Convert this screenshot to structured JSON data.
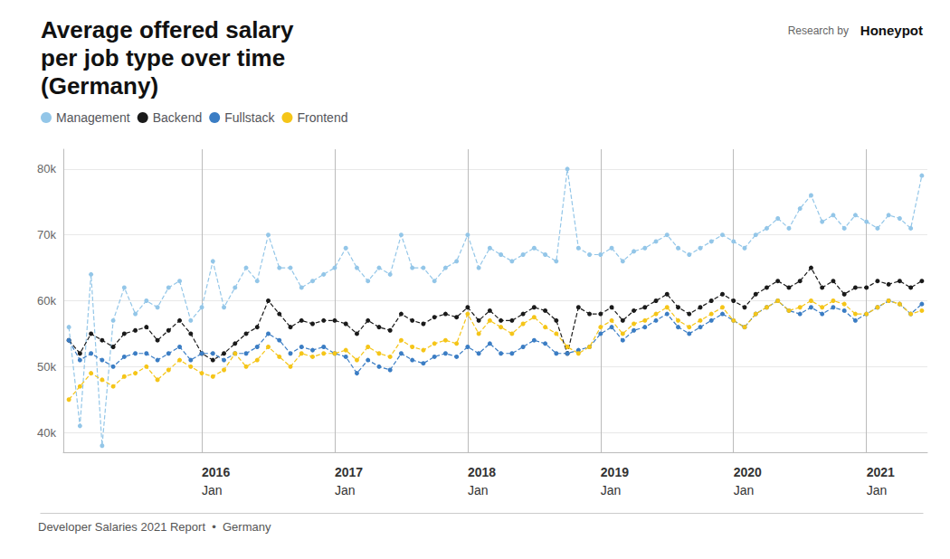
{
  "chart_data": {
    "type": "line",
    "title": "Average offered salary\nper job type over time\n(Germany)",
    "annotations": [
      "Research by",
      "Honeypot",
      "Developer Salaries 2021 Report  •  Germany"
    ],
    "categories": [
      null,
      null,
      null,
      null,
      null,
      null,
      null,
      null,
      null,
      null,
      null,
      null,
      "2016 Jan",
      null,
      null,
      null,
      null,
      null,
      null,
      null,
      null,
      null,
      null,
      null,
      "2017 Jan",
      null,
      null,
      null,
      null,
      null,
      null,
      null,
      null,
      null,
      null,
      null,
      "2018 Jan",
      null,
      null,
      null,
      null,
      null,
      null,
      null,
      null,
      null,
      null,
      null,
      "2019 Jan",
      null,
      null,
      null,
      null,
      null,
      null,
      null,
      null,
      null,
      null,
      null,
      "2020 Jan",
      null,
      null,
      null,
      null,
      null,
      null,
      null,
      null,
      null,
      null,
      null,
      "2021 Jan",
      null,
      null,
      null,
      null,
      null
    ],
    "series": [
      {
        "name": "Management",
        "color": "#93C6E8",
        "marker": "circle",
        "line_style": "dashed",
        "values": [
          56000,
          41000,
          64000,
          38000,
          57000,
          62000,
          58000,
          60000,
          59000,
          62000,
          63000,
          57000,
          59000,
          66000,
          59000,
          62000,
          65000,
          63000,
          70000,
          65000,
          65000,
          62000,
          63000,
          64000,
          65000,
          68000,
          65000,
          63000,
          65000,
          64000,
          70000,
          65000,
          65000,
          63000,
          65000,
          66000,
          70000,
          65000,
          68000,
          67000,
          66000,
          67000,
          68000,
          67000,
          66000,
          80000,
          68000,
          67000,
          67000,
          68000,
          66000,
          67500,
          68000,
          69000,
          70000,
          68000,
          67000,
          68000,
          69000,
          70000,
          69000,
          68000,
          70000,
          71000,
          72500,
          71000,
          74000,
          76000,
          72000,
          73000,
          71000,
          73000,
          72000,
          71000,
          73000,
          72500,
          71000,
          79000
        ]
      },
      {
        "name": "Backend",
        "color": "#1a1a1a",
        "marker": "circle",
        "line_style": "dashed",
        "values": [
          54000,
          52000,
          55000,
          54000,
          53000,
          55000,
          55500,
          56000,
          54000,
          55500,
          57000,
          55000,
          52000,
          51000,
          52000,
          53500,
          55000,
          56000,
          60000,
          58000,
          56000,
          57000,
          56500,
          57000,
          57000,
          56500,
          55000,
          57000,
          56000,
          55500,
          58000,
          57000,
          56500,
          57500,
          58000,
          57500,
          59000,
          57000,
          58500,
          57000,
          57000,
          58000,
          59000,
          58500,
          57000,
          52000,
          59000,
          58000,
          58000,
          59000,
          57000,
          58500,
          59000,
          60000,
          61000,
          59000,
          58000,
          59000,
          60000,
          61000,
          60000,
          59000,
          61000,
          62000,
          63000,
          62000,
          63000,
          65000,
          62000,
          63000,
          61000,
          62000,
          62000,
          63000,
          62500,
          63000,
          62000,
          63000
        ]
      },
      {
        "name": "Fullstack",
        "color": "#3B7DC4",
        "marker": "circle",
        "line_style": "dashed",
        "values": [
          54000,
          51000,
          52000,
          51000,
          50000,
          51500,
          52000,
          52000,
          51000,
          52000,
          53000,
          51000,
          52000,
          52000,
          51000,
          52000,
          52000,
          53000,
          55000,
          54000,
          52000,
          53000,
          52500,
          53000,
          52000,
          51500,
          49000,
          51000,
          50000,
          49500,
          52000,
          51000,
          50500,
          51500,
          52000,
          51500,
          53000,
          52000,
          53500,
          52000,
          52000,
          53000,
          54000,
          53500,
          52000,
          52000,
          52500,
          53000,
          55000,
          56000,
          54000,
          55500,
          56000,
          57000,
          58000,
          56000,
          55000,
          56000,
          57000,
          58000,
          57000,
          56000,
          58000,
          59000,
          60000,
          58500,
          58000,
          59000,
          58000,
          59000,
          58500,
          57000,
          58000,
          59000,
          60000,
          59500,
          58000,
          59500
        ]
      },
      {
        "name": "Frontend",
        "color": "#F5C518",
        "marker": "circle",
        "line_style": "dashed",
        "values": [
          45000,
          47000,
          49000,
          48000,
          47000,
          48500,
          49000,
          50000,
          48000,
          49500,
          51000,
          50000,
          49000,
          48500,
          49500,
          52000,
          50000,
          51000,
          53000,
          51500,
          50000,
          52000,
          51500,
          52000,
          52000,
          52500,
          51000,
          53000,
          52000,
          51500,
          54000,
          53000,
          52500,
          53500,
          54000,
          53500,
          58000,
          55000,
          57000,
          56000,
          55000,
          56500,
          57500,
          56000,
          55000,
          53000,
          52000,
          53000,
          56000,
          57000,
          55000,
          56500,
          57000,
          58000,
          59000,
          57000,
          56000,
          57000,
          58000,
          59000,
          57000,
          56000,
          58000,
          59000,
          60000,
          58500,
          59000,
          60000,
          59000,
          60000,
          59500,
          58000,
          58000,
          59000,
          60000,
          59500,
          58000,
          58500
        ]
      }
    ],
    "ylim": [
      37000,
      83000
    ],
    "yticks": [
      {
        "value": 40000,
        "label": "40k"
      },
      {
        "value": 50000,
        "label": "50k"
      },
      {
        "value": 60000,
        "label": "60k"
      },
      {
        "value": 70000,
        "label": "70k"
      },
      {
        "value": 80000,
        "label": "80k"
      }
    ],
    "grid": true,
    "legend": "upper left"
  }
}
